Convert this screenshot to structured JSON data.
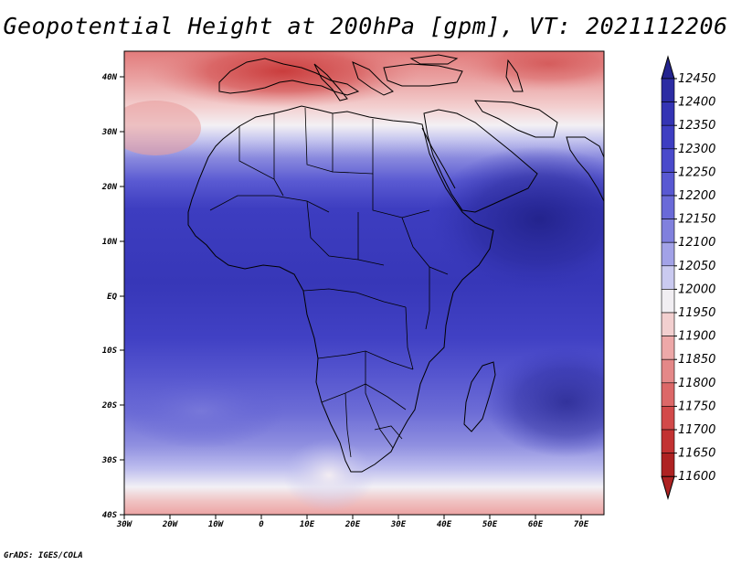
{
  "title": "Geopotential Height at 200hPa [gpm], VT: 2021112206",
  "credit": "GrADS: IGES/COLA",
  "lon_labels": [
    "30W",
    "20W",
    "10W",
    "0",
    "10E",
    "20E",
    "30E",
    "40E",
    "50E",
    "60E",
    "70E"
  ],
  "lat_labels": [
    "40N",
    "30N",
    "20N",
    "10N",
    "EQ",
    "10S",
    "20S",
    "30S",
    "40S"
  ],
  "map_extent": {
    "lon_min": -30,
    "lon_max": 75,
    "lat_min": -40,
    "lat_max": 44
  },
  "colorbar": {
    "levels": [
      "12450",
      "12400",
      "12350",
      "12300",
      "12250",
      "12200",
      "12150",
      "12100",
      "12050",
      "12000",
      "11950",
      "11900",
      "11850",
      "11800",
      "11750",
      "11700",
      "11650",
      "11600"
    ],
    "colors": [
      "#24248f",
      "#2c2ca3",
      "#3434b4",
      "#3e3ec2",
      "#4a4acb",
      "#5858d2",
      "#6a6ad8",
      "#8080dd",
      "#a2a2e7",
      "#cacaf0",
      "#f1eef2",
      "#f2cfcf",
      "#eda8a8",
      "#e48888",
      "#dc6868",
      "#d24a4a",
      "#c23232",
      "#ae2222"
    ]
  },
  "colors": {
    "ocean_blue": "#3838b8",
    "deep_blue": "#26268f",
    "north_red": "#d24a4a"
  }
}
